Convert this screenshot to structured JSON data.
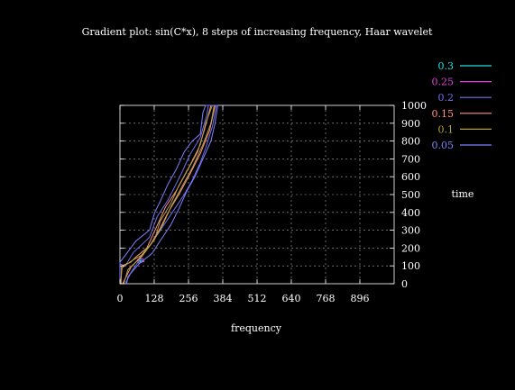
{
  "chart_data": {
    "type": "contour",
    "title": "Gradient plot: sin(C*x), 8 steps of increasing frequency, Haar wavelet",
    "xlabel": "frequency",
    "ylabel": "time",
    "x_ticks": [
      0,
      128,
      256,
      384,
      512,
      640,
      768,
      896
    ],
    "y_ticks": [
      0,
      100,
      200,
      300,
      400,
      500,
      600,
      700,
      800,
      900,
      1000
    ],
    "xlim": [
      0,
      1024
    ],
    "ylim": [
      0,
      1000
    ],
    "grid": true,
    "legend_position": "top-right",
    "series": [
      {
        "name": "0.3",
        "color": "#22e0e0",
        "values": [
          [
            80,
            122
          ],
          [
            84,
            128
          ],
          [
            78,
            132
          ],
          [
            72,
            126
          ],
          [
            80,
            122
          ]
        ]
      },
      {
        "name": "0.25",
        "color": "#e040e0",
        "values": [
          [
            68,
            116
          ],
          [
            90,
            124
          ],
          [
            86,
            140
          ],
          [
            66,
            136
          ],
          [
            68,
            116
          ]
        ]
      },
      {
        "name": "0.2",
        "color": "#7070f0",
        "values": [
          [
            0,
            0
          ],
          [
            0,
            110
          ],
          [
            20,
            100
          ],
          [
            50,
            175
          ],
          [
            110,
            260
          ],
          [
            140,
            380
          ],
          [
            180,
            470
          ],
          [
            230,
            620
          ],
          [
            260,
            720
          ],
          [
            300,
            820
          ],
          [
            325,
            950
          ],
          [
            330,
            1000
          ],
          [
            360,
            1000
          ],
          [
            345,
            880
          ],
          [
            320,
            760
          ],
          [
            300,
            680
          ],
          [
            270,
            580
          ],
          [
            240,
            500
          ],
          [
            200,
            410
          ],
          [
            160,
            320
          ],
          [
            120,
            230
          ],
          [
            80,
            150
          ],
          [
            40,
            60
          ],
          [
            20,
            0
          ]
        ]
      },
      {
        "name": "0.15",
        "color": "#ff9080",
        "values": [
          [
            4,
            0
          ],
          [
            6,
            100
          ],
          [
            40,
            120
          ],
          [
            60,
            150
          ],
          [
            100,
            200
          ],
          [
            140,
            330
          ],
          [
            170,
            430
          ],
          [
            210,
            520
          ],
          [
            250,
            630
          ],
          [
            290,
            740
          ],
          [
            315,
            860
          ],
          [
            340,
            1000
          ],
          [
            355,
            1000
          ],
          [
            335,
            860
          ],
          [
            300,
            730
          ],
          [
            260,
            610
          ],
          [
            220,
            500
          ],
          [
            180,
            400
          ],
          [
            150,
            310
          ],
          [
            110,
            210
          ],
          [
            70,
            140
          ],
          [
            40,
            90
          ],
          [
            10,
            0
          ]
        ]
      },
      {
        "name": "0.1",
        "color": "#b8a040",
        "values": [
          [
            2,
            0
          ],
          [
            8,
            90
          ],
          [
            45,
            130
          ],
          [
            80,
            160
          ],
          [
            130,
            250
          ],
          [
            150,
            350
          ],
          [
            190,
            450
          ],
          [
            220,
            550
          ],
          [
            260,
            660
          ],
          [
            300,
            780
          ],
          [
            320,
            900
          ],
          [
            345,
            1000
          ],
          [
            352,
            1000
          ],
          [
            340,
            900
          ],
          [
            310,
            780
          ],
          [
            270,
            650
          ],
          [
            230,
            540
          ],
          [
            190,
            430
          ],
          [
            160,
            330
          ],
          [
            120,
            230
          ],
          [
            80,
            150
          ],
          [
            30,
            80
          ],
          [
            14,
            0
          ]
        ]
      },
      {
        "name": "0.05",
        "color": "#8080ff",
        "values": [
          [
            0,
            0
          ],
          [
            0,
            120
          ],
          [
            30,
            180
          ],
          [
            60,
            240
          ],
          [
            110,
            300
          ],
          [
            130,
            400
          ],
          [
            150,
            460
          ],
          [
            180,
            560
          ],
          [
            210,
            640
          ],
          [
            240,
            740
          ],
          [
            270,
            800
          ],
          [
            300,
            840
          ],
          [
            310,
            960
          ],
          [
            320,
            1000
          ],
          [
            365,
            1000
          ],
          [
            355,
            900
          ],
          [
            340,
            800
          ],
          [
            310,
            700
          ],
          [
            280,
            600
          ],
          [
            250,
            520
          ],
          [
            220,
            420
          ],
          [
            190,
            330
          ],
          [
            150,
            240
          ],
          [
            120,
            170
          ],
          [
            70,
            110
          ],
          [
            30,
            40
          ],
          [
            25,
            0
          ]
        ]
      }
    ]
  }
}
